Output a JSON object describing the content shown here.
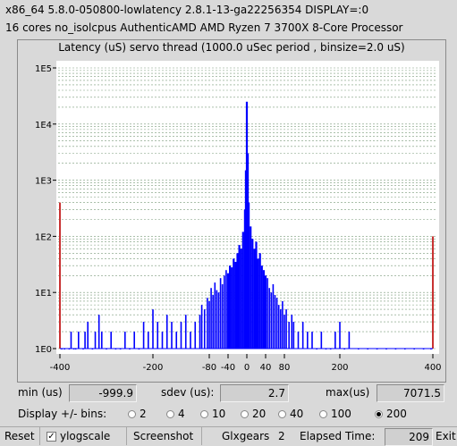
{
  "header": {
    "line1": "x86_64   5.8.0-050800-lowlatency   2.8.1-13-ga22256354   DISPLAY=:0",
    "line2": "16 cores   no_isolcpus    AuthenticAMD   AMD Ryzen 7 3700X 8-Core Processor"
  },
  "chart_data": {
    "type": "bar",
    "title": "Latency (uS) servo thread (1000.0 uSec period , binsize=2.0 uS)",
    "xlabel": "",
    "ylabel": "",
    "xlim": [
      -400,
      400
    ],
    "ylim": [
      1,
      100000
    ],
    "yscale": "log",
    "xticks": [
      "-400",
      "-200",
      "-80",
      "-40",
      "0",
      "40",
      "80",
      "200",
      "400"
    ],
    "yticks": [
      "1E0",
      "1E1",
      "1E2",
      "1E3",
      "1E4",
      "1E5"
    ],
    "grid": true,
    "x": [
      -400,
      -396,
      -390,
      -380,
      -376,
      -370,
      -366,
      -360,
      -350,
      -346,
      -340,
      -330,
      -324,
      -316,
      -310,
      -300,
      -290,
      -280,
      -270,
      -260,
      -250,
      -240,
      -230,
      -220,
      -210,
      -200,
      -190,
      -180,
      -170,
      -160,
      -150,
      -140,
      -130,
      -120,
      -110,
      -100,
      -96,
      -90,
      -84,
      -80,
      -76,
      -72,
      -68,
      -64,
      -60,
      -56,
      -52,
      -48,
      -44,
      -40,
      -36,
      -32,
      -28,
      -24,
      -20,
      -16,
      -12,
      -8,
      -4,
      -2,
      0,
      2,
      4,
      8,
      12,
      16,
      20,
      24,
      28,
      32,
      36,
      40,
      44,
      48,
      52,
      56,
      60,
      64,
      68,
      72,
      76,
      80,
      84,
      90,
      96,
      100,
      110,
      120,
      130,
      140,
      150,
      160,
      170,
      180,
      190,
      200,
      210,
      220,
      240,
      260,
      280,
      300,
      320,
      340,
      360,
      380,
      396,
      400
    ],
    "values": [
      400,
      1,
      1,
      1,
      2,
      1,
      1,
      2,
      1,
      2,
      3,
      1,
      2,
      4,
      2,
      1,
      2,
      1,
      1,
      2,
      1,
      2,
      1,
      3,
      2,
      5,
      3,
      2,
      4,
      3,
      2,
      3,
      4,
      2,
      3,
      4,
      6,
      5,
      8,
      7,
      12,
      9,
      15,
      11,
      10,
      18,
      14,
      20,
      25,
      22,
      30,
      28,
      40,
      35,
      50,
      70,
      60,
      120,
      300,
      1500,
      25000,
      3000,
      400,
      150,
      90,
      60,
      80,
      40,
      50,
      30,
      25,
      20,
      18,
      12,
      10,
      14,
      9,
      8,
      6,
      5,
      7,
      4,
      5,
      3,
      4,
      3,
      2,
      3,
      2,
      2,
      1,
      2,
      1,
      1,
      2,
      3,
      1,
      2,
      1,
      1,
      1,
      1,
      1,
      1,
      1,
      1,
      1,
      100
    ]
  },
  "stats": {
    "min_label": "min (us)",
    "min_value": "-999.9",
    "sdev_label": "sdev (us):",
    "sdev_value": "2.7",
    "max_label": "max(us)",
    "max_value": "7071.5"
  },
  "bins": {
    "label": "Display +/- bins:",
    "options": [
      "2",
      "4",
      "10",
      "20",
      "40",
      "100",
      "200"
    ],
    "selected": "200"
  },
  "toolbar": {
    "reset": "Reset",
    "ylogscale": "ylogscale",
    "ylogscale_checked": true,
    "screenshot": "Screenshot",
    "glxgears": "Glxgears",
    "glxgears_value": "2",
    "elapsed_label": "Elapsed Time:",
    "elapsed_value": "209",
    "exit": "Exit"
  },
  "colors": {
    "bar": "#0000ff",
    "edge_bar": "#c83232",
    "grid": "#7a9a7a",
    "plot_bg": "#ffffff",
    "window_bg": "#d9d9d9"
  }
}
